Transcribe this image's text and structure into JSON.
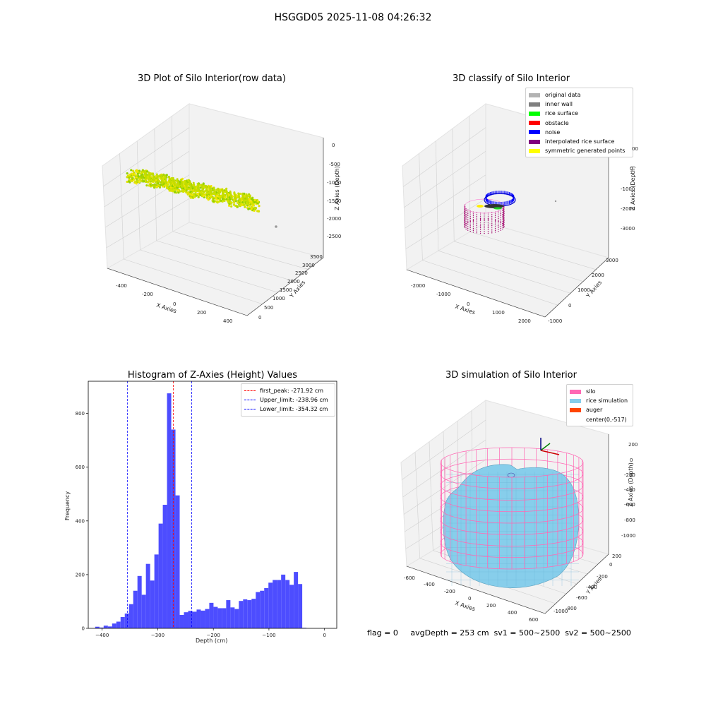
{
  "suptitle": "HSGGD05 2025-11-08 04:26:32",
  "panel1": {
    "title": "3D Plot of Silo Interior(row data)",
    "xlabel": "X Axies",
    "ylabel": "Y Axies",
    "zlabel": "Z Axies (Depth)",
    "xticks": [
      "-400",
      "-200",
      "0",
      "200",
      "400"
    ],
    "yticks": [
      "0",
      "500",
      "1000",
      "1500",
      "2000",
      "2500",
      "3000",
      "3500"
    ],
    "zticks": [
      "0",
      "-500",
      "-1000",
      "-1500",
      "-2000",
      "-2500"
    ]
  },
  "panel2": {
    "title": "3D classify of Silo Interior",
    "xlabel": "X Axies",
    "ylabel": "Y Axies",
    "zlabel": "Z Axies (Depth)",
    "xticks": [
      "-2000",
      "-1000",
      "0",
      "1000",
      "2000"
    ],
    "yticks": [
      "-1000",
      "0",
      "1000",
      "2000",
      "3000"
    ],
    "zticks": [
      "0",
      "-1000",
      "-2000",
      "-3000"
    ],
    "ztick_partial": "00",
    "legend": [
      {
        "label": "original data",
        "color": "#b3b3b3"
      },
      {
        "label": "inner wall",
        "color": "#808080"
      },
      {
        "label": "rice surface",
        "color": "#00ff00"
      },
      {
        "label": "obstacle",
        "color": "#ff0000"
      },
      {
        "label": "noise",
        "color": "#0000ff"
      },
      {
        "label": "interpolated rice surface",
        "color": "#800080"
      },
      {
        "label": "symmetric generated points",
        "color": "#ffff00"
      }
    ]
  },
  "panel4": {
    "title": "3D simulation of Silo Interior",
    "xlabel": "X Axies",
    "ylabel": "Y Axies",
    "zlabel": "Z Axies (Depth)",
    "xticks": [
      "-600",
      "-400",
      "-200",
      "0",
      "200",
      "400",
      "600"
    ],
    "yticks": [
      "200",
      "0",
      "-200",
      "-400",
      "-600",
      "-800",
      "-1000"
    ],
    "zticks": [
      "200",
      "0",
      "-200",
      "-400",
      "-600",
      "-800",
      "-1000"
    ],
    "legend": [
      {
        "label": "silo",
        "color": "#ff69b4"
      },
      {
        "label": "rice simulation",
        "color": "#87ceeb"
      },
      {
        "label": "auger",
        "color": "#ff4500"
      },
      {
        "label": "center(0,-517)",
        "color": ""
      }
    ]
  },
  "footer": "flag = 0     avgDepth = 253 cm  sv1 = 500~2500  sv2 = 500~2500",
  "chart_data": [
    {
      "type": "bar",
      "title": "Histogram of Z-Axies (Height) Values",
      "xlabel": "Depth (cm)",
      "ylabel": "Frequency",
      "xlim": [
        -425,
        22
      ],
      "ylim": [
        0,
        920
      ],
      "xticks": [
        -400,
        -300,
        -200,
        -100,
        0
      ],
      "yticks": [
        0,
        200,
        400,
        600,
        800
      ],
      "bin_width": 7.6,
      "bin_start": -412.5,
      "values": [
        6,
        3,
        10,
        7,
        18,
        25,
        42,
        55,
        90,
        140,
        195,
        125,
        240,
        178,
        275,
        390,
        460,
        875,
        740,
        495,
        50,
        60,
        65,
        62,
        70,
        66,
        72,
        95,
        80,
        75,
        75,
        105,
        78,
        72,
        102,
        108,
        105,
        110,
        135,
        140,
        150,
        170,
        180,
        180,
        200,
        180,
        162,
        210,
        165,
        2
      ],
      "bar_color": "#4d4dff",
      "vlines": [
        {
          "label": "first_peak: -271.92 cm",
          "x": -271.92,
          "color": "#ff0000"
        },
        {
          "label": "Upper_limit: -238.96 cm",
          "x": -238.96,
          "color": "#0000ff"
        },
        {
          "label": "Lower_limit: -354.32 cm",
          "x": -354.32,
          "color": "#0000ff"
        }
      ],
      "legend_position": "top-right"
    }
  ]
}
